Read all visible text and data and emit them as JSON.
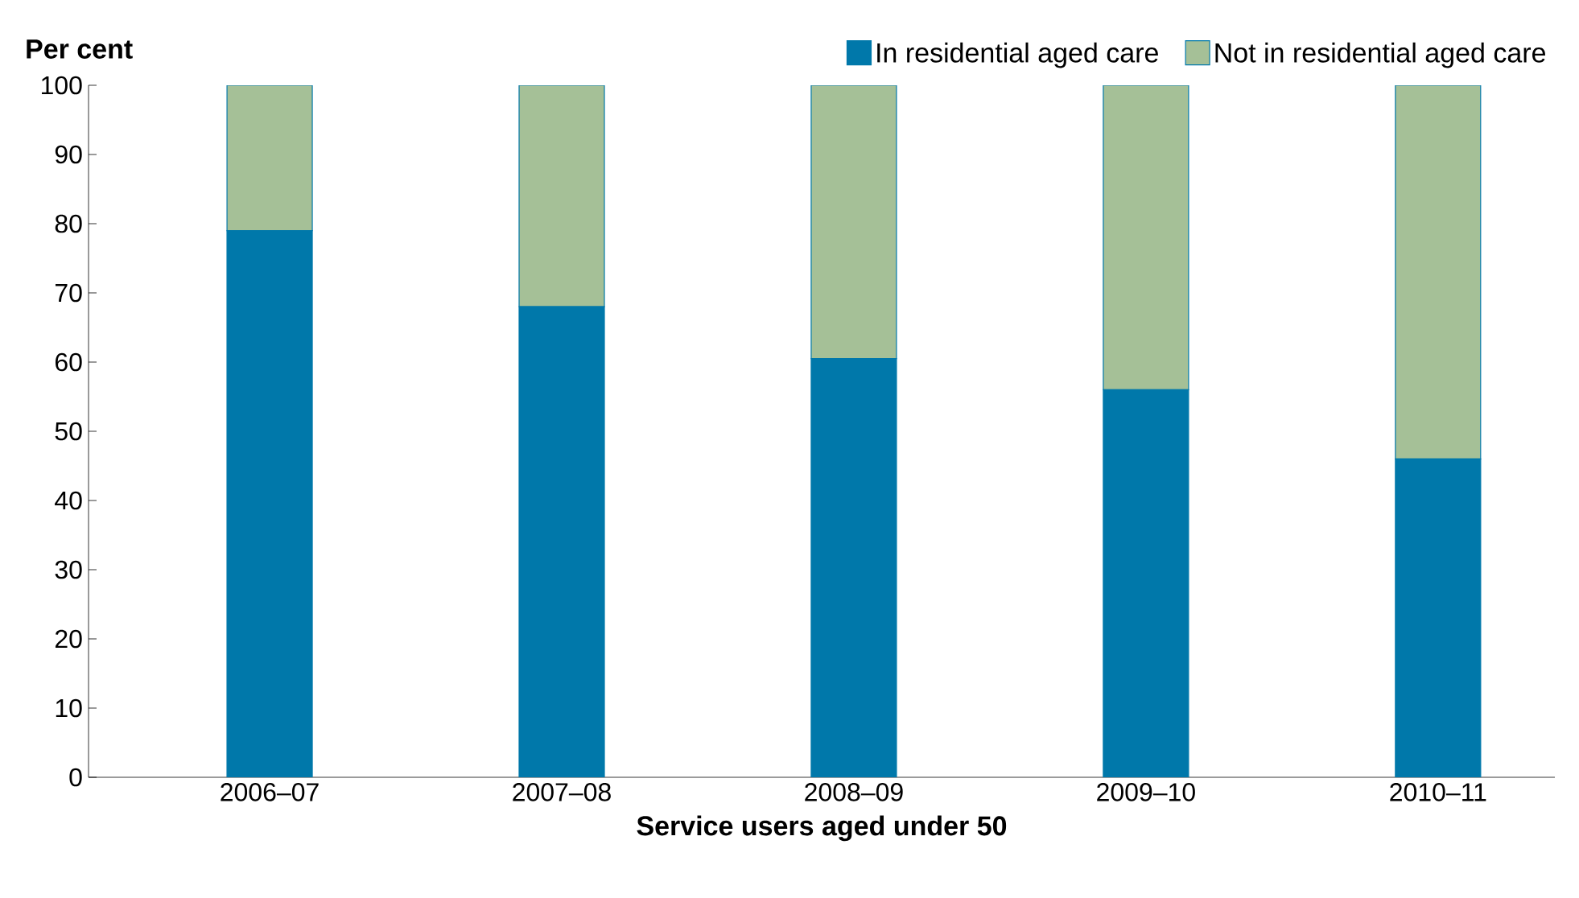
{
  "chart_data": {
    "type": "bar",
    "stacked": true,
    "xlabel": "Service users aged under 50",
    "ylabel": "Per cent",
    "categories": [
      "2006–07",
      "2007–08",
      "2008–09",
      "2009–10",
      "2010–11"
    ],
    "series": [
      {
        "name": "In residential aged care",
        "color": "#0078aa",
        "values": [
          79,
          68,
          60.5,
          56,
          46
        ]
      },
      {
        "name": "Not in residential aged care",
        "color": "#a5c097",
        "values": [
          21,
          32,
          39.5,
          44,
          54
        ]
      }
    ],
    "ylim": [
      0,
      100
    ],
    "yticks": [
      0,
      10,
      20,
      30,
      40,
      50,
      60,
      70,
      80,
      90,
      100
    ],
    "grid": false,
    "legend": "top right"
  }
}
